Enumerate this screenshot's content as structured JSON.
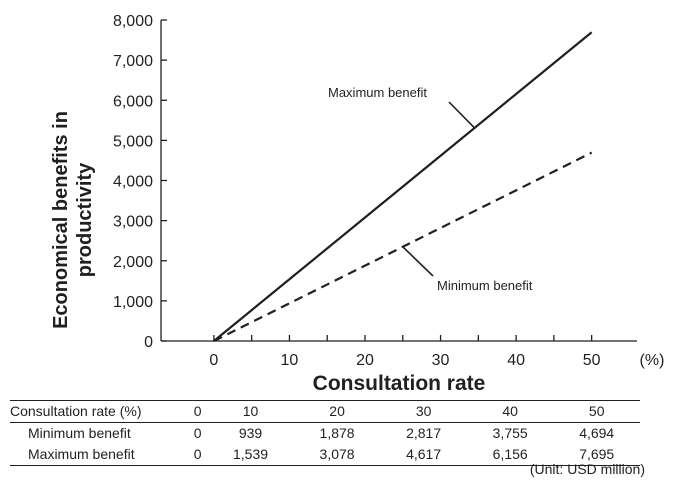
{
  "chart_data": {
    "type": "line",
    "title": "",
    "xlabel": "Consultation rate",
    "x_unit": "(%)",
    "ylabel": [
      "Economical benefits in",
      "productivity"
    ],
    "x": [
      0,
      10,
      20,
      30,
      40,
      50
    ],
    "x_ticks": [
      "0",
      "10",
      "20",
      "30",
      "40",
      "50"
    ],
    "xlim": [
      -7,
      56
    ],
    "ylim": [
      0,
      8000
    ],
    "y_ticks": [
      "0",
      "1,000",
      "2,000",
      "3,000",
      "4,000",
      "5,000",
      "6,000",
      "7,000",
      "8,000"
    ],
    "y_tick_values": [
      0,
      1000,
      2000,
      3000,
      4000,
      5000,
      6000,
      7000,
      8000
    ],
    "series": [
      {
        "name": "Maximum benefit",
        "style": "solid",
        "values": [
          0,
          1539,
          3078,
          4617,
          6156,
          7695
        ]
      },
      {
        "name": "Minimum benefit",
        "style": "dashed",
        "values": [
          0,
          939,
          1878,
          2817,
          3755,
          4694
        ]
      }
    ],
    "annotations": [
      {
        "text": "Maximum benefit",
        "series": 0,
        "x": 34.5
      },
      {
        "text": "Minimum benefit",
        "series": 1,
        "x": 25
      }
    ],
    "legend": "none",
    "grid": false
  },
  "table": {
    "rows": [
      {
        "label": "Consultation rate (%)",
        "cells": [
          "0",
          "10",
          "20",
          "30",
          "40",
          "50"
        ]
      },
      {
        "label": "Minimum benefit",
        "cells": [
          "0",
          "939",
          "1,878",
          "2,817",
          "3,755",
          "4,694"
        ]
      },
      {
        "label": "Maximum benefit",
        "cells": [
          "0",
          "1,539",
          "3,078",
          "4,617",
          "6,156",
          "7,695"
        ]
      }
    ],
    "unit_note": "(Unit: USD million)"
  }
}
